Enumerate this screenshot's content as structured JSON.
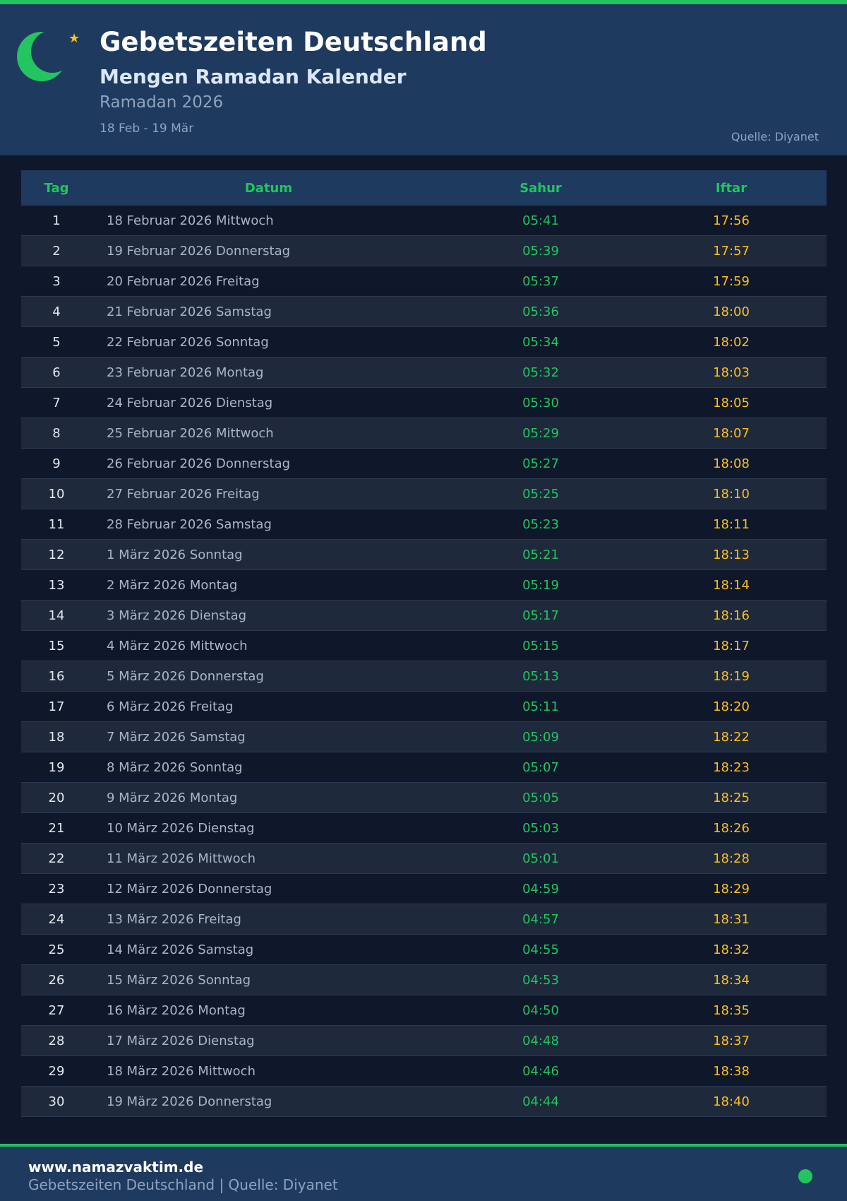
{
  "colors": {
    "accent": "#22c55e",
    "iftar": "#fbbf24",
    "header_bg": "#1e3a5f",
    "page_bg": "#0f172a"
  },
  "header": {
    "logo_icon": "crescent-star-icon",
    "title": "Gebetszeiten Deutschland",
    "subtitle": "Mengen Ramadan Kalender",
    "season": "Ramadan 2026",
    "range": "18 Feb - 19 Mär",
    "source": "Quelle: Diyanet"
  },
  "table": {
    "columns": [
      "Tag",
      "Datum",
      "Sahur",
      "Iftar"
    ],
    "rows": [
      [
        "1",
        "18 Februar 2026 Mittwoch",
        "05:41",
        "17:56"
      ],
      [
        "2",
        "19 Februar 2026 Donnerstag",
        "05:39",
        "17:57"
      ],
      [
        "3",
        "20 Februar 2026 Freitag",
        "05:37",
        "17:59"
      ],
      [
        "4",
        "21 Februar 2026 Samstag",
        "05:36",
        "18:00"
      ],
      [
        "5",
        "22 Februar 2026 Sonntag",
        "05:34",
        "18:02"
      ],
      [
        "6",
        "23 Februar 2026 Montag",
        "05:32",
        "18:03"
      ],
      [
        "7",
        "24 Februar 2026 Dienstag",
        "05:30",
        "18:05"
      ],
      [
        "8",
        "25 Februar 2026 Mittwoch",
        "05:29",
        "18:07"
      ],
      [
        "9",
        "26 Februar 2026 Donnerstag",
        "05:27",
        "18:08"
      ],
      [
        "10",
        "27 Februar 2026 Freitag",
        "05:25",
        "18:10"
      ],
      [
        "11",
        "28 Februar 2026 Samstag",
        "05:23",
        "18:11"
      ],
      [
        "12",
        "1 März 2026 Sonntag",
        "05:21",
        "18:13"
      ],
      [
        "13",
        "2 März 2026 Montag",
        "05:19",
        "18:14"
      ],
      [
        "14",
        "3 März 2026 Dienstag",
        "05:17",
        "18:16"
      ],
      [
        "15",
        "4 März 2026 Mittwoch",
        "05:15",
        "18:17"
      ],
      [
        "16",
        "5 März 2026 Donnerstag",
        "05:13",
        "18:19"
      ],
      [
        "17",
        "6 März 2026 Freitag",
        "05:11",
        "18:20"
      ],
      [
        "18",
        "7 März 2026 Samstag",
        "05:09",
        "18:22"
      ],
      [
        "19",
        "8 März 2026 Sonntag",
        "05:07",
        "18:23"
      ],
      [
        "20",
        "9 März 2026 Montag",
        "05:05",
        "18:25"
      ],
      [
        "21",
        "10 März 2026 Dienstag",
        "05:03",
        "18:26"
      ],
      [
        "22",
        "11 März 2026 Mittwoch",
        "05:01",
        "18:28"
      ],
      [
        "23",
        "12 März 2026 Donnerstag",
        "04:59",
        "18:29"
      ],
      [
        "24",
        "13 März 2026 Freitag",
        "04:57",
        "18:31"
      ],
      [
        "25",
        "14 März 2026 Samstag",
        "04:55",
        "18:32"
      ],
      [
        "26",
        "15 März 2026 Sonntag",
        "04:53",
        "18:34"
      ],
      [
        "27",
        "16 März 2026 Montag",
        "04:50",
        "18:35"
      ],
      [
        "28",
        "17 März 2026 Dienstag",
        "04:48",
        "18:37"
      ],
      [
        "29",
        "18 März 2026 Mittwoch",
        "04:46",
        "18:38"
      ],
      [
        "30",
        "19 März 2026 Donnerstag",
        "04:44",
        "18:40"
      ]
    ]
  },
  "footer": {
    "site": "www.namazvaktim.de",
    "tagline": "Gebetszeiten Deutschland | Quelle: Diyanet",
    "status_icon": "status-dot-icon"
  }
}
